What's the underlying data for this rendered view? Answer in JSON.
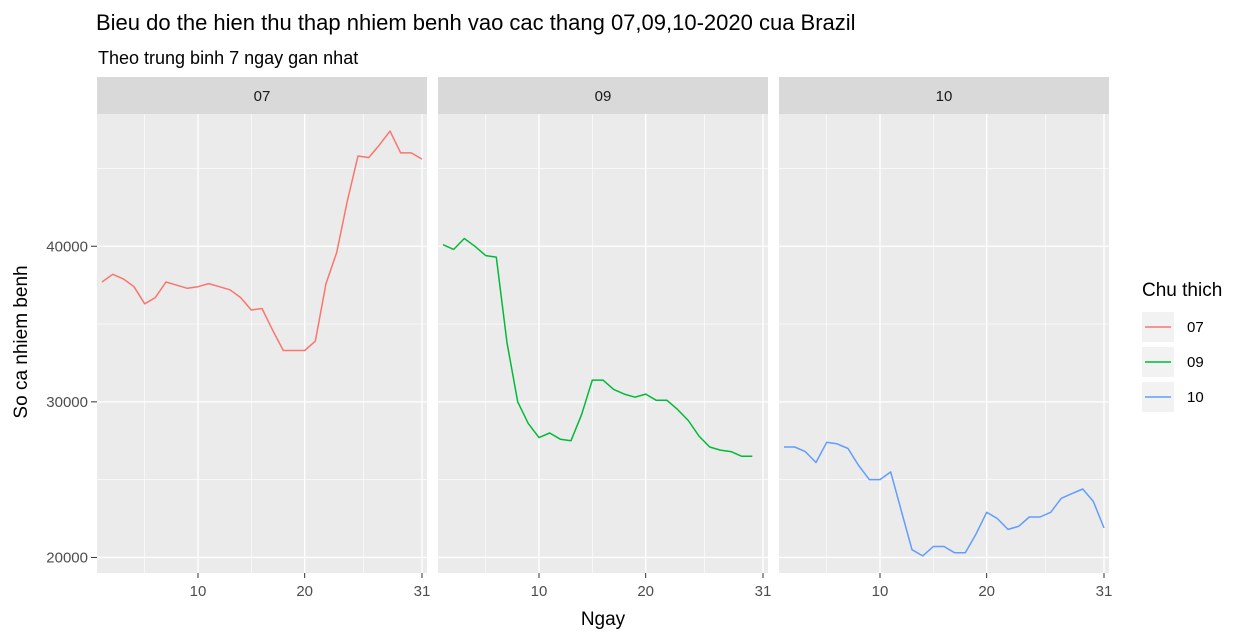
{
  "chart_data": {
    "type": "line",
    "title": "Bieu do the hien thu thap nhiem benh vao cac thang 07,09,10-2020 cua Brazil",
    "subtitle": "Theo trung binh 7 ngay gan nhat",
    "xlabel": "Ngay",
    "ylabel": "So ca nhiem benh",
    "x_ticks": [
      10,
      20,
      31
    ],
    "y_ticks": [
      20000,
      30000,
      40000
    ],
    "y_tick_labels": [
      "20000",
      "30000",
      "40000"
    ],
    "xlim": [
      1,
      31
    ],
    "ylim": [
      19000,
      48500
    ],
    "grid": true,
    "legend": {
      "title": "Chu thich",
      "placement": "right"
    },
    "panels": [
      {
        "label": "07",
        "color": "#F8766D",
        "x": [
          1,
          2,
          3,
          4,
          5,
          6,
          7,
          8,
          9,
          10,
          11,
          12,
          13,
          14,
          15,
          16,
          17,
          18,
          19,
          20,
          21,
          22,
          23,
          24,
          25,
          26,
          27,
          28,
          29,
          30,
          31
        ],
        "values": [
          37700,
          38200,
          37900,
          37400,
          36300,
          36700,
          37700,
          37500,
          37300,
          37400,
          37600,
          37400,
          37200,
          36700,
          35900,
          36000,
          34600,
          33300,
          33300,
          33300,
          33900,
          37600,
          39600,
          42900,
          45800,
          45700,
          46500,
          47400,
          46000,
          46000,
          45600
        ]
      },
      {
        "label": "09",
        "color": "#00BA38",
        "x": [
          1,
          2,
          3,
          4,
          5,
          6,
          7,
          8,
          9,
          10,
          11,
          12,
          13,
          14,
          15,
          16,
          17,
          18,
          19,
          20,
          21,
          22,
          23,
          24,
          25,
          26,
          27,
          28,
          29,
          30
        ],
        "values": [
          40100,
          39800,
          40500,
          40000,
          39400,
          39300,
          33800,
          30000,
          28600,
          27700,
          28000,
          27600,
          27500,
          29200,
          31400,
          31400,
          30800,
          30500,
          30300,
          30500,
          30100,
          30100,
          29500,
          28800,
          27800,
          27100,
          26900,
          26800,
          26500,
          26500
        ]
      },
      {
        "label": "10",
        "color": "#619CFF",
        "x": [
          1,
          2,
          3,
          4,
          5,
          6,
          7,
          8,
          9,
          10,
          11,
          12,
          13,
          14,
          15,
          16,
          17,
          18,
          19,
          20,
          21,
          22,
          23,
          24,
          25,
          26,
          27,
          28,
          29,
          30,
          31
        ],
        "values": [
          27100,
          27100,
          26800,
          26100,
          27400,
          27300,
          27000,
          25900,
          25000,
          25000,
          25500,
          23000,
          20500,
          20100,
          20700,
          20700,
          20300,
          20300,
          21500,
          22900,
          22500,
          21800,
          22000,
          22600,
          22600,
          22900,
          23800,
          24100,
          24400,
          23600,
          21900
        ]
      }
    ]
  }
}
